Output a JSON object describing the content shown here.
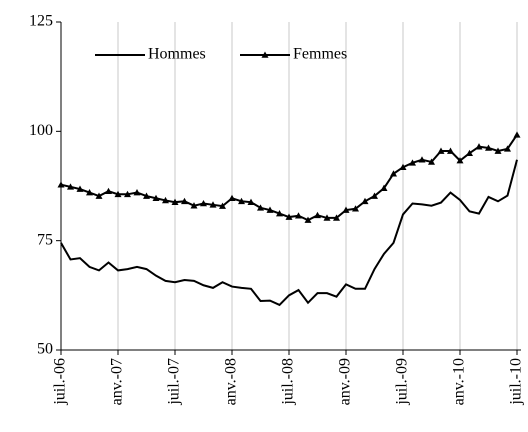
{
  "chart_data": {
    "type": "line",
    "categories": [
      "juil.-06",
      null,
      null,
      null,
      null,
      null,
      "anv.-07",
      null,
      null,
      null,
      null,
      null,
      "juil.-07",
      null,
      null,
      null,
      null,
      null,
      "anv.-08",
      null,
      null,
      null,
      null,
      null,
      "juil.-08",
      null,
      null,
      null,
      null,
      null,
      "anv.-09",
      null,
      null,
      null,
      null,
      null,
      "juil.-09",
      null,
      null,
      null,
      null,
      null,
      "anv.-10",
      null,
      null,
      null,
      null,
      null,
      "juil.-10"
    ],
    "series": [
      {
        "name": "Hommes",
        "color": "#000000",
        "marker": "none",
        "values": [
          74.5,
          70.7,
          71,
          69,
          68.2,
          70,
          68.2,
          68.5,
          69,
          68.5,
          67,
          65.8,
          65.5,
          66,
          65.8,
          64.8,
          64.2,
          65.5,
          64.5,
          64.2,
          64,
          61.2,
          61.3,
          60.3,
          62.5,
          63.7,
          60.8,
          63,
          63,
          62.2,
          65,
          64,
          64,
          68.5,
          72,
          74.5,
          81,
          83.5,
          83.3,
          83,
          83.7,
          86,
          84.3,
          81.7,
          81.2,
          85,
          84,
          85.3,
          93.5
        ]
      },
      {
        "name": "Femmes",
        "color": "#000000",
        "marker": "triangle",
        "values": [
          87.8,
          87.3,
          86.8,
          86,
          85.2,
          86.3,
          85.6,
          85.6,
          86,
          85.2,
          84.7,
          84.2,
          83.8,
          84,
          83,
          83.5,
          83.2,
          82.9,
          84.7,
          84,
          83.8,
          82.5,
          82,
          81.2,
          80.4,
          80.7,
          79.7,
          80.8,
          80.2,
          80.2,
          82,
          82.3,
          84,
          85.2,
          87,
          90.3,
          91.8,
          92.8,
          93.5,
          93,
          95.5,
          95.5,
          93.3,
          95,
          96.5,
          96.2,
          95.5,
          96,
          99.2
        ]
      }
    ],
    "ylim": [
      50,
      125
    ],
    "yticks": [
      50,
      75,
      100,
      125
    ],
    "grid": "x",
    "legend": "top-left"
  }
}
